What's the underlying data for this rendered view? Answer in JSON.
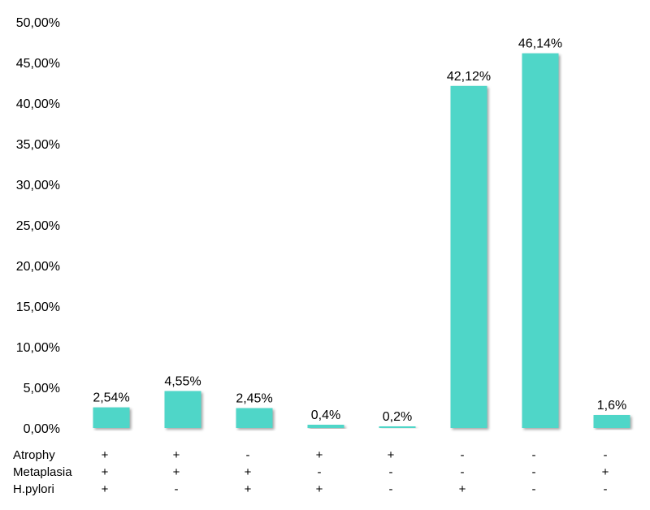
{
  "chart_data": {
    "type": "bar",
    "title": "",
    "xlabel": "",
    "ylabel": "",
    "ylim": [
      0,
      50
    ],
    "yticks": [
      "0,00%",
      "5,00%",
      "10,00%",
      "15,00%",
      "20,00%",
      "25,00%",
      "30,00%",
      "35,00%",
      "40,00%",
      "45,00%",
      "50,00%"
    ],
    "grid": false,
    "bar_color": "#4fd6c8",
    "values": [
      2.54,
      4.55,
      2.45,
      0.4,
      0.2,
      42.12,
      46.14,
      1.6
    ],
    "data_labels": [
      "2,54%",
      "4,55%",
      "2,45%",
      "0,4%",
      "0,2%",
      "42,12%",
      "46,14%",
      "1,6%"
    ],
    "category_table": {
      "rows": [
        {
          "label": "Atrophy",
          "signs": [
            "+",
            "+",
            "-",
            "+",
            "+",
            "-",
            "-",
            "-"
          ]
        },
        {
          "label": "Metaplasia",
          "signs": [
            "+",
            "+",
            "+",
            "-",
            "-",
            "-",
            "-",
            "+"
          ]
        },
        {
          "label": "H.pylori",
          "signs": [
            "+",
            "-",
            "+",
            "+",
            "-",
            "+",
            "-",
            "-"
          ]
        }
      ]
    }
  }
}
